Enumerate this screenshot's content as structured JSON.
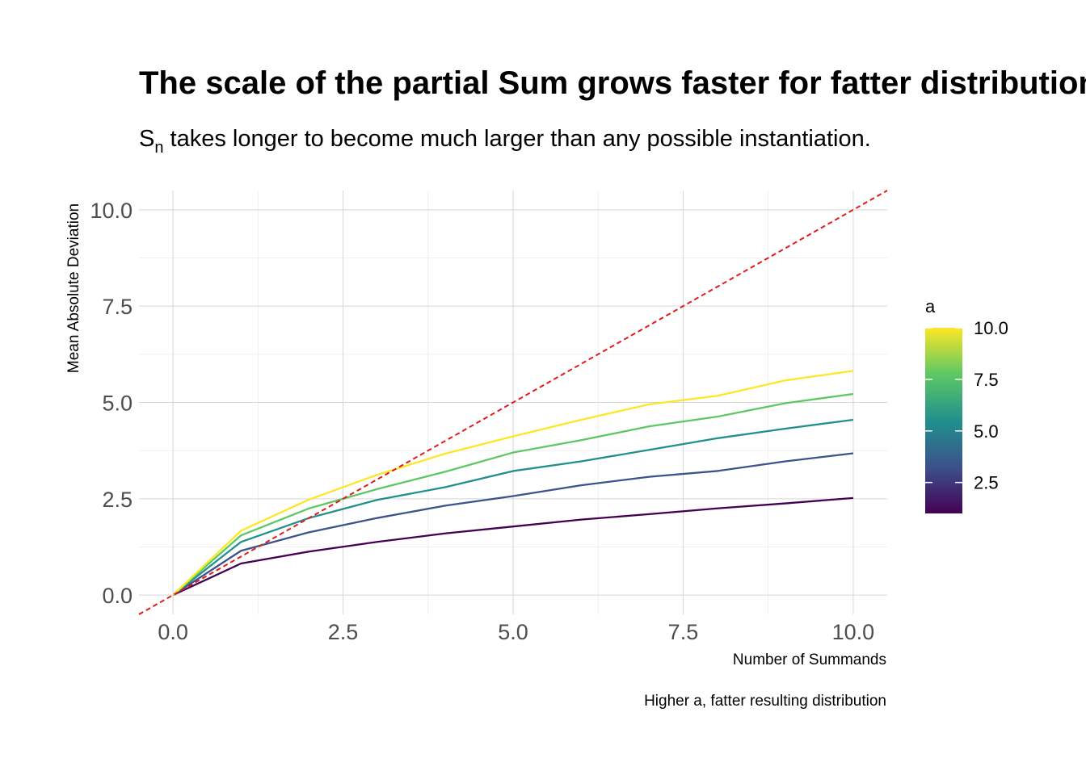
{
  "chart_data": {
    "type": "line",
    "title": "The scale of the partial Sum grows faster for fatter distributions",
    "subtitle": {
      "main": "S",
      "sub": "n",
      "rest": " takes longer to become much larger than any possible instantiation."
    },
    "xlabel": "Number of Summands",
    "ylabel": "Mean Absolute Deviation",
    "caption": "Higher a, fatter resulting distribution",
    "xlim": [
      -0.5,
      10.5
    ],
    "ylim": [
      -0.5,
      10.5
    ],
    "x_ticks": [
      0,
      2.5,
      5,
      7.5,
      10
    ],
    "y_ticks": [
      0,
      2.5,
      5,
      7.5,
      10
    ],
    "x_tick_labels": [
      "0.0",
      "2.5",
      "5.0",
      "7.5",
      "10.0"
    ],
    "y_tick_labels": [
      "0.0",
      "2.5",
      "5.0",
      "7.5",
      "10.0"
    ],
    "grid": true,
    "x": [
      0,
      1,
      2,
      3,
      4,
      5,
      6,
      7,
      8,
      9,
      10
    ],
    "series": [
      {
        "a": 1,
        "color": "#440154",
        "values": [
          0,
          0.82,
          1.13,
          1.38,
          1.6,
          1.78,
          1.96,
          2.1,
          2.25,
          2.38,
          2.52
        ]
      },
      {
        "a": 3,
        "color": "#3b528b",
        "values": [
          0,
          1.15,
          1.63,
          2.0,
          2.32,
          2.57,
          2.85,
          3.07,
          3.22,
          3.47,
          3.68
        ]
      },
      {
        "a": 5,
        "color": "#21908d",
        "values": [
          0,
          1.38,
          2.0,
          2.47,
          2.8,
          3.22,
          3.47,
          3.77,
          4.07,
          4.32,
          4.55
        ]
      },
      {
        "a": 7,
        "color": "#5dc863",
        "values": [
          0,
          1.55,
          2.25,
          2.75,
          3.2,
          3.7,
          4.02,
          4.38,
          4.63,
          4.98,
          5.22
        ]
      },
      {
        "a": 10,
        "color": "#fde725",
        "values": [
          0,
          1.67,
          2.48,
          3.12,
          3.67,
          4.12,
          4.55,
          4.95,
          5.17,
          5.57,
          5.82
        ]
      }
    ],
    "reference_line": {
      "slope": 1,
      "intercept": 0,
      "color": "#e31a1c",
      "style": "dashed"
    },
    "legend": {
      "title": "a",
      "position": "right",
      "scale": "viridis",
      "range": [
        1,
        10
      ],
      "breaks": [
        2.5,
        5,
        7.5,
        10
      ],
      "break_labels": [
        "2.5",
        "5.0",
        "7.5",
        "10.0"
      ],
      "colors": [
        "#440154",
        "#3b528b",
        "#21908d",
        "#5dc863",
        "#fde725"
      ]
    }
  }
}
